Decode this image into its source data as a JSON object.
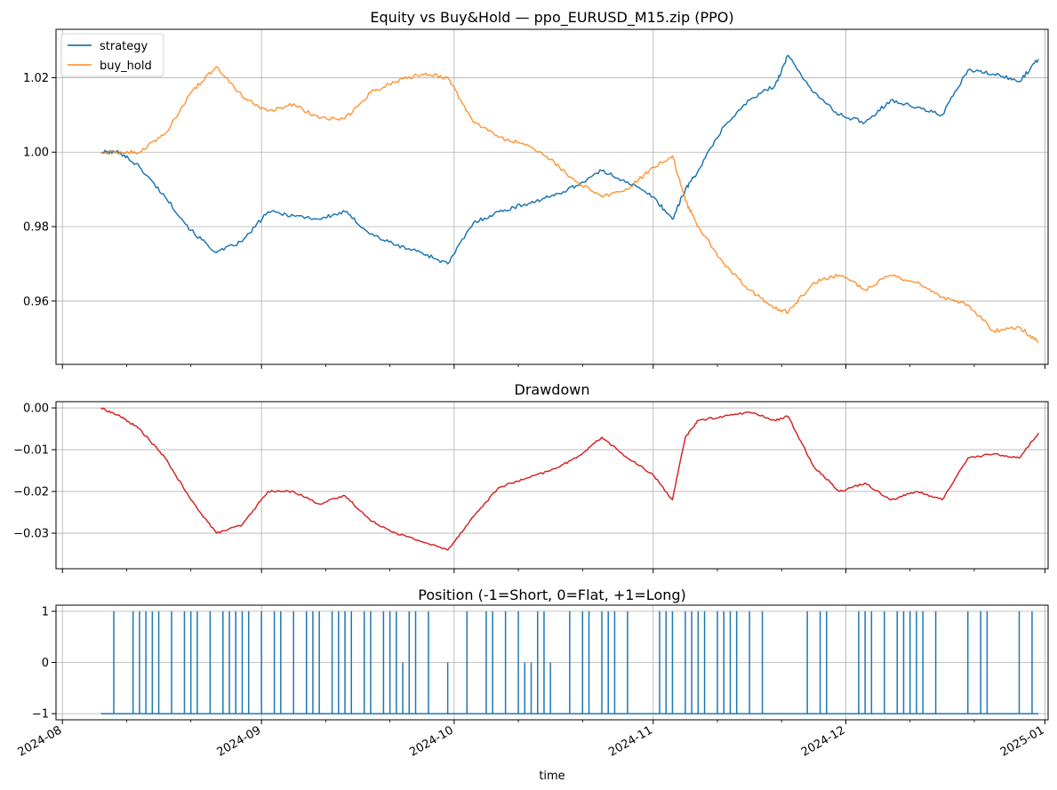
{
  "chart_data": [
    {
      "type": "line",
      "title": "Equity vs Buy&Hold — ppo_EURUSD_M15.zip (PPO)",
      "xlabel": "",
      "ylabel": "",
      "ylim": [
        0.943,
        1.033
      ],
      "yticks": [
        0.96,
        0.98,
        1.0,
        1.02
      ],
      "ytick_labels": [
        "0.96",
        "0.98",
        "1.00",
        "1.02"
      ],
      "grid": true,
      "legend": "top-left",
      "x": [
        "2024-08-07",
        "2024-08-10",
        "2024-08-13",
        "2024-08-17",
        "2024-08-21",
        "2024-08-25",
        "2024-08-29",
        "2024-09-02",
        "2024-09-06",
        "2024-09-10",
        "2024-09-14",
        "2024-09-18",
        "2024-09-22",
        "2024-09-26",
        "2024-09-30",
        "2024-10-04",
        "2024-10-08",
        "2024-10-12",
        "2024-10-16",
        "2024-10-20",
        "2024-10-24",
        "2024-10-28",
        "2024-11-01",
        "2024-11-04",
        "2024-11-06",
        "2024-11-08",
        "2024-11-12",
        "2024-11-16",
        "2024-11-20",
        "2024-11-22",
        "2024-11-26",
        "2024-11-30",
        "2024-12-04",
        "2024-12-08",
        "2024-12-12",
        "2024-12-16",
        "2024-12-20",
        "2024-12-24",
        "2024-12-28",
        "2024-12-31"
      ],
      "series": [
        {
          "name": "strategy",
          "color": "#1f77b4",
          "values": [
            1.0,
            1.0,
            0.996,
            0.988,
            0.979,
            0.973,
            0.976,
            0.984,
            0.983,
            0.982,
            0.984,
            0.978,
            0.975,
            0.973,
            0.97,
            0.981,
            0.984,
            0.986,
            0.988,
            0.991,
            0.995,
            0.992,
            0.988,
            0.982,
            0.99,
            0.995,
            1.007,
            1.014,
            1.018,
            1.026,
            1.016,
            1.01,
            1.008,
            1.014,
            1.012,
            1.01,
            1.022,
            1.021,
            1.019,
            1.025
          ]
        },
        {
          "name": "buy_hold",
          "color": "#ff7f0e",
          "values": [
            1.0,
            1.0,
            1.0,
            1.005,
            1.016,
            1.023,
            1.015,
            1.011,
            1.013,
            1.009,
            1.009,
            1.016,
            1.019,
            1.021,
            1.02,
            1.008,
            1.004,
            1.002,
            0.998,
            0.992,
            0.988,
            0.99,
            0.996,
            0.999,
            0.987,
            0.98,
            0.97,
            0.963,
            0.958,
            0.957,
            0.965,
            0.967,
            0.963,
            0.967,
            0.965,
            0.961,
            0.959,
            0.952,
            0.953,
            0.949
          ]
        }
      ]
    },
    {
      "type": "line",
      "title": "Drawdown",
      "xlabel": "",
      "ylabel": "",
      "ylim": [
        -0.0385,
        0.0015
      ],
      "yticks": [
        0.0,
        -0.01,
        -0.02,
        -0.03
      ],
      "ytick_labels": [
        "0.00",
        "−0.01",
        "−0.02",
        "−0.03"
      ],
      "grid": true,
      "x": [
        "2024-08-07",
        "2024-08-10",
        "2024-08-13",
        "2024-08-17",
        "2024-08-21",
        "2024-08-25",
        "2024-08-29",
        "2024-09-02",
        "2024-09-06",
        "2024-09-10",
        "2024-09-14",
        "2024-09-18",
        "2024-09-22",
        "2024-09-26",
        "2024-09-30",
        "2024-10-04",
        "2024-10-08",
        "2024-10-12",
        "2024-10-16",
        "2024-10-20",
        "2024-10-24",
        "2024-10-28",
        "2024-11-01",
        "2024-11-04",
        "2024-11-06",
        "2024-11-08",
        "2024-11-12",
        "2024-11-16",
        "2024-11-20",
        "2024-11-22",
        "2024-11-26",
        "2024-11-30",
        "2024-12-04",
        "2024-12-08",
        "2024-12-12",
        "2024-12-16",
        "2024-12-20",
        "2024-12-24",
        "2024-12-28",
        "2024-12-31"
      ],
      "series": [
        {
          "name": "",
          "color": "#d62728",
          "values": [
            0.0,
            -0.002,
            -0.005,
            -0.012,
            -0.022,
            -0.03,
            -0.028,
            -0.02,
            -0.02,
            -0.023,
            -0.021,
            -0.027,
            -0.03,
            -0.032,
            -0.034,
            -0.026,
            -0.019,
            -0.017,
            -0.015,
            -0.012,
            -0.007,
            -0.012,
            -0.016,
            -0.022,
            -0.007,
            -0.003,
            -0.002,
            -0.001,
            -0.003,
            -0.002,
            -0.014,
            -0.02,
            -0.018,
            -0.022,
            -0.02,
            -0.022,
            -0.012,
            -0.011,
            -0.012,
            -0.006
          ]
        }
      ]
    },
    {
      "type": "line",
      "title": "Position (-1=Short, 0=Flat, +1=Long)",
      "xlabel": "time",
      "ylabel": "",
      "ylim": [
        -1.12,
        1.12
      ],
      "yticks": [
        -1,
        0,
        1
      ],
      "ytick_labels": [
        "−1",
        "0",
        "1"
      ],
      "grid": true,
      "x_start": "2024-08-07",
      "x_end": "2024-12-31",
      "base_value": -1,
      "series": [
        {
          "name": "position",
          "color": "#1f77b4",
          "long_dates": [
            "2024-08-09",
            "2024-08-12",
            "2024-08-13",
            "2024-08-14",
            "2024-08-15",
            "2024-08-16",
            "2024-08-18",
            "2024-08-20",
            "2024-08-21",
            "2024-08-22",
            "2024-08-24",
            "2024-08-26",
            "2024-08-27",
            "2024-08-28",
            "2024-08-29",
            "2024-08-30",
            "2024-09-01",
            "2024-09-03",
            "2024-09-04",
            "2024-09-06",
            "2024-09-08",
            "2024-09-09",
            "2024-09-10",
            "2024-09-12",
            "2024-09-13",
            "2024-09-14",
            "2024-09-15",
            "2024-09-17",
            "2024-09-18",
            "2024-09-20",
            "2024-09-21",
            "2024-09-22",
            "2024-09-24",
            "2024-09-25",
            "2024-09-27",
            "2024-10-03",
            "2024-10-06",
            "2024-10-07",
            "2024-10-09",
            "2024-10-11",
            "2024-10-14",
            "2024-10-15",
            "2024-10-19",
            "2024-10-21",
            "2024-10-22",
            "2024-10-24",
            "2024-10-25",
            "2024-10-26",
            "2024-10-28",
            "2024-11-02",
            "2024-11-03",
            "2024-11-04",
            "2024-11-06",
            "2024-11-07",
            "2024-11-08",
            "2024-11-09",
            "2024-11-11",
            "2024-11-12",
            "2024-11-13",
            "2024-11-14",
            "2024-11-16",
            "2024-11-18",
            "2024-11-25",
            "2024-11-27",
            "2024-11-28",
            "2024-12-03",
            "2024-12-04",
            "2024-12-05",
            "2024-12-07",
            "2024-12-09",
            "2024-12-10",
            "2024-12-11",
            "2024-12-12",
            "2024-12-13",
            "2024-12-15",
            "2024-12-20",
            "2024-12-22",
            "2024-12-23",
            "2024-12-28",
            "2024-12-30"
          ],
          "flat_dates": [
            "2024-09-23",
            "2024-09-30",
            "2024-10-12",
            "2024-10-13",
            "2024-10-14",
            "2024-10-16"
          ]
        }
      ]
    }
  ],
  "x_axis": {
    "tick_labels": [
      "2024-08",
      "2024-09",
      "2024-10",
      "2024-11",
      "2024-12",
      "2025-01"
    ],
    "tick_dates": [
      "2024-08-01",
      "2024-09-01",
      "2024-10-01",
      "2024-11-01",
      "2024-12-01",
      "2025-01-01"
    ],
    "minor_tick_dates": [
      "2024-08-11",
      "2024-08-21",
      "2024-09-11",
      "2024-09-21",
      "2024-10-11",
      "2024-10-21",
      "2024-11-11",
      "2024-11-21",
      "2024-12-11",
      "2024-12-21"
    ],
    "label": "time",
    "xlim": [
      "2024-07-31",
      "2025-01-01T12:00:00"
    ]
  }
}
